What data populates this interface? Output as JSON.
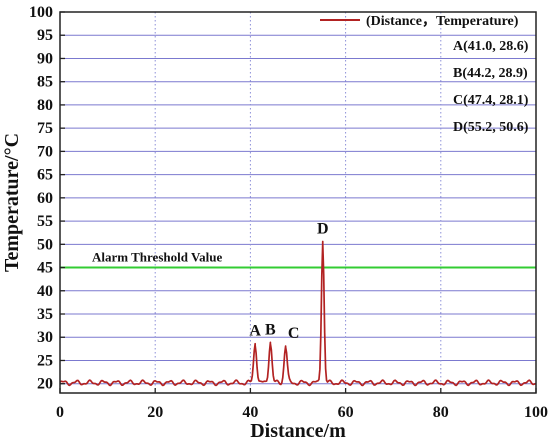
{
  "chart_data": {
    "type": "line",
    "xlabel": "Distance/m",
    "ylabel": "Temperature/°C",
    "xlim": [
      0,
      100
    ],
    "ylim": [
      18,
      100
    ],
    "x_ticks": [
      0,
      20,
      40,
      60,
      80,
      100
    ],
    "y_ticks": [
      20,
      25,
      30,
      35,
      40,
      45,
      50,
      55,
      60,
      65,
      70,
      75,
      80,
      85,
      90,
      95,
      100
    ],
    "grid": true,
    "legend": {
      "placement": "top-right",
      "series_label": "(Distance，Temperature)",
      "entries": [
        "A(41.0, 28.6)",
        "B(44.2, 28.9)",
        "C(47.4, 28.1)",
        "D(55.2, 50.6)"
      ]
    },
    "series": [
      {
        "name": "(Distance，Temperature)",
        "color": "#b22222",
        "baseline": 20.2,
        "noise_amplitude": 0.4,
        "peaks": [
          {
            "label": "A",
            "x": 41.0,
            "y": 28.6
          },
          {
            "label": "B",
            "x": 44.2,
            "y": 28.9
          },
          {
            "label": "C",
            "x": 47.4,
            "y": 28.1
          },
          {
            "label": "D",
            "x": 55.2,
            "y": 50.6
          }
        ]
      }
    ],
    "threshold": {
      "label": "Alarm Threshold Value",
      "value": 45,
      "color": "#33cc33"
    },
    "colors": {
      "horizontal_grid": "#7b79cf",
      "vertical_grid": "#8c8fd8",
      "axes": "#222222"
    }
  }
}
